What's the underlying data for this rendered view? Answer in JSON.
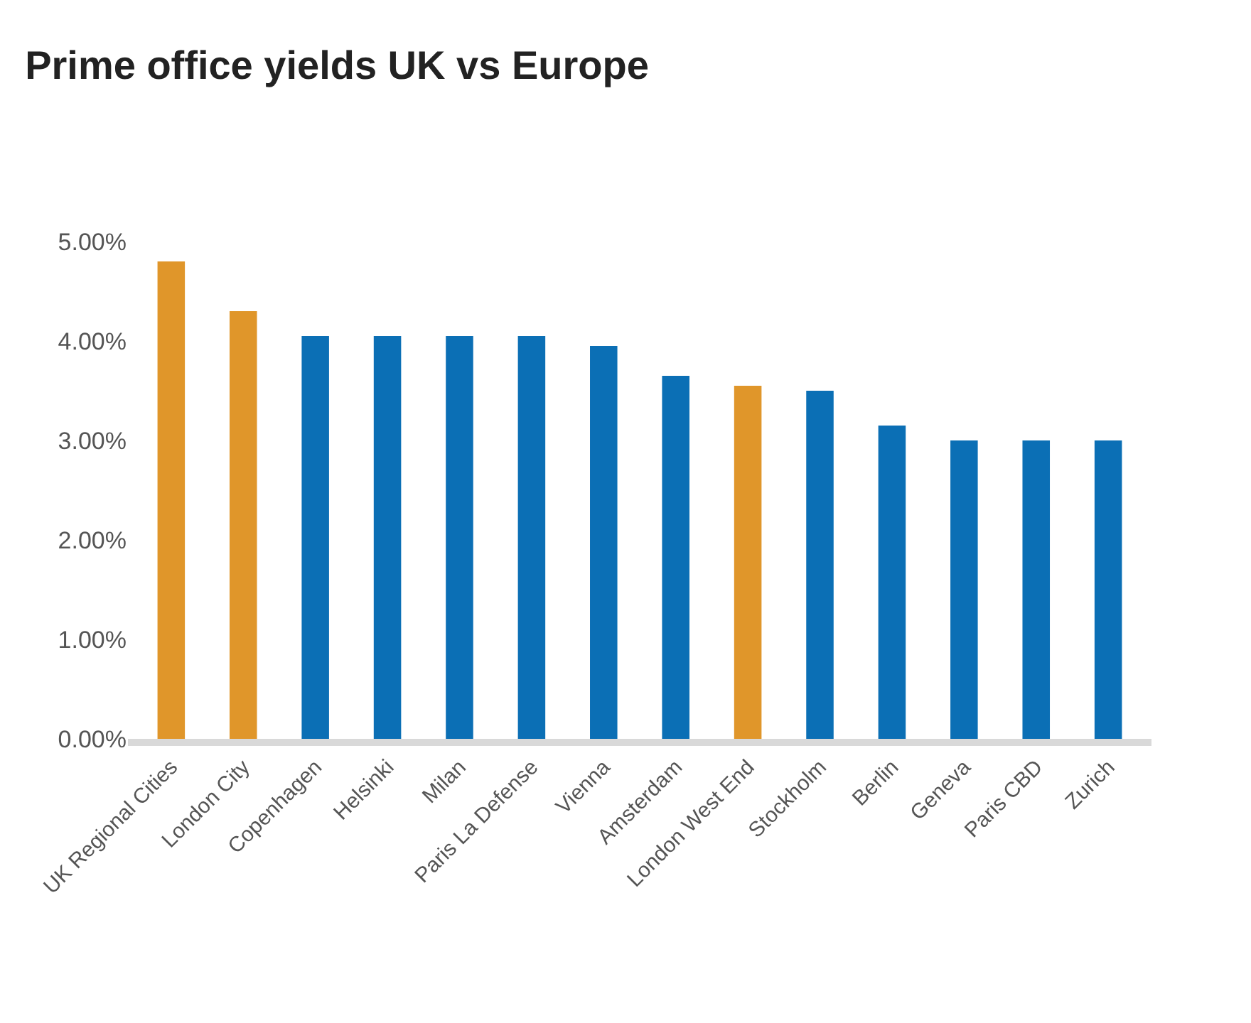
{
  "chart_data": {
    "type": "bar",
    "title": "Prime office yields UK vs Europe",
    "categories": [
      "UK Regional Cities",
      "London City",
      "Copenhagen",
      "Helsinki",
      "Milan",
      "Paris La Defense",
      "Vienna",
      "Amsterdam",
      "London West End",
      "Stockholm",
      "Berlin",
      "Geneva",
      "Paris CBD",
      "Zurich"
    ],
    "values": [
      4.8,
      4.3,
      4.05,
      4.05,
      4.05,
      4.05,
      3.95,
      3.65,
      3.55,
      3.5,
      3.15,
      3.0,
      3.0,
      3.0
    ],
    "colors": [
      "#e0962a",
      "#e0962a",
      "#0b6fb5",
      "#0b6fb5",
      "#0b6fb5",
      "#0b6fb5",
      "#0b6fb5",
      "#0b6fb5",
      "#e0962a",
      "#0b6fb5",
      "#0b6fb5",
      "#0b6fb5",
      "#0b6fb5",
      "#0b6fb5"
    ],
    "ylim": [
      0,
      5
    ],
    "yticks": [
      {
        "value": 0,
        "label": "0.00%"
      },
      {
        "value": 1,
        "label": "1.00%"
      },
      {
        "value": 2,
        "label": "2.00%"
      },
      {
        "value": 3,
        "label": "3.00%"
      },
      {
        "value": 4,
        "label": "4.00%"
      },
      {
        "value": 5,
        "label": "5.00%"
      }
    ],
    "legend": false
  }
}
